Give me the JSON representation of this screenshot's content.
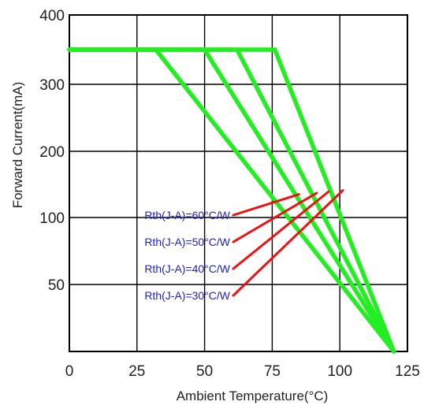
{
  "chart_data": {
    "type": "line",
    "xlabel": "Ambient Temperature(°C)",
    "ylabel": "Forward Current(mA)",
    "xlim": [
      0,
      125
    ],
    "x_ticks": [
      0,
      25,
      50,
      75,
      100,
      125
    ],
    "y_ticks": [
      {
        "label": "400",
        "value": 400
      },
      {
        "label": "300",
        "value": 300
      },
      {
        "label": "200",
        "value": 200
      },
      {
        "label": "100",
        "value": 100
      },
      {
        "label": "50",
        "value": 50
      },
      {
        "label": "",
        "value": 0
      }
    ],
    "grid": true,
    "series_color": "#22ee22",
    "annotation_color": "#ee1111",
    "series": [
      {
        "name": "Rth(J-A)=60°C/W",
        "x": [
          0,
          32,
          120
        ],
        "y": [
          350,
          350,
          0
        ]
      },
      {
        "name": "Rth(J-A)=50°C/W",
        "x": [
          0,
          50,
          120
        ],
        "y": [
          350,
          350,
          0
        ]
      },
      {
        "name": "Rth(J-A)=40°C/W",
        "x": [
          0,
          62,
          120
        ],
        "y": [
          350,
          350,
          0
        ]
      },
      {
        "name": "Rth(J-A)=30°C/W",
        "x": [
          0,
          76,
          120
        ],
        "y": [
          350,
          350,
          0
        ]
      }
    ],
    "annotations": [
      {
        "text": "Rth(J-A)=60°C/W"
      },
      {
        "text": "Rth(J-A)=50°C/W"
      },
      {
        "text": "Rth(J-A)=40°C/W"
      },
      {
        "text": "Rth(J-A)=30°C/W"
      }
    ]
  }
}
